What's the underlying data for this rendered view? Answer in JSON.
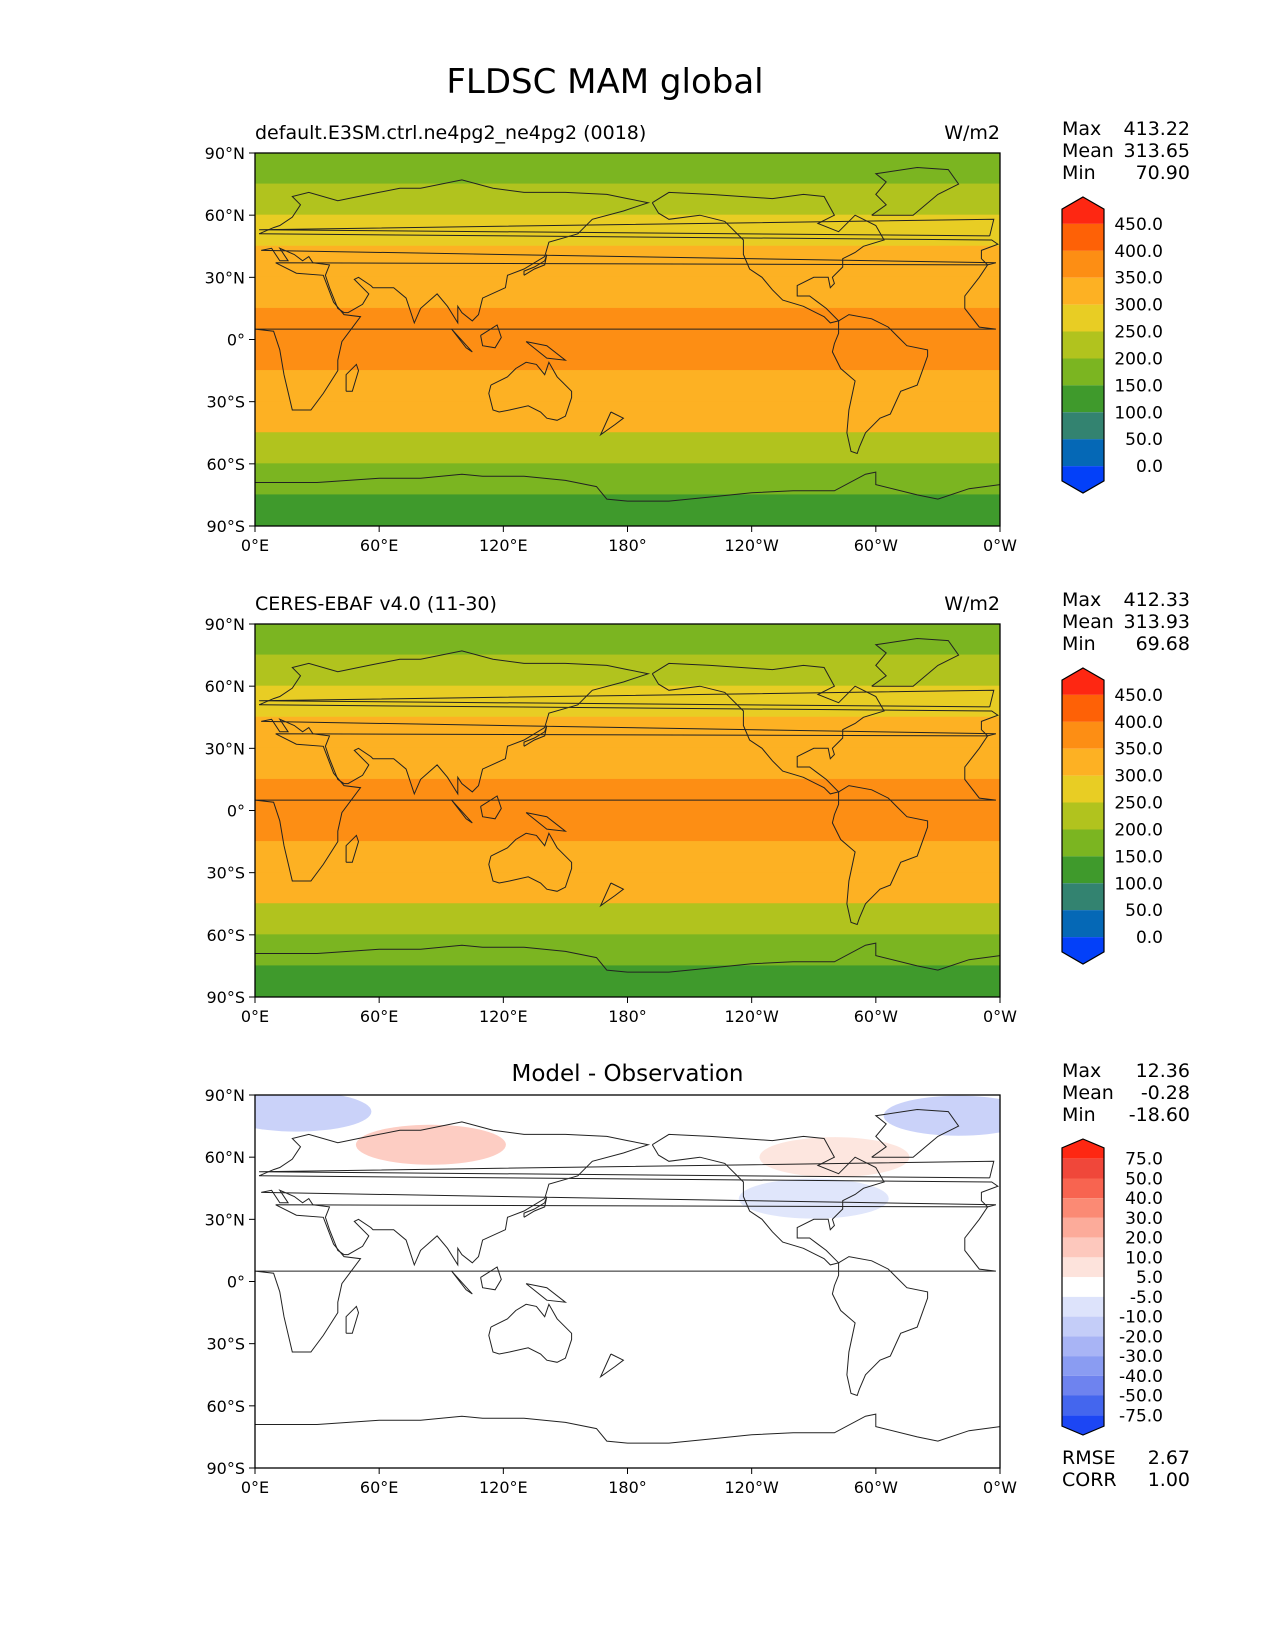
{
  "figure": {
    "title": "FLDSC MAM global"
  },
  "lat_ticks": [
    "90°N",
    "60°N",
    "30°N",
    "0°",
    "30°S",
    "60°S",
    "90°S"
  ],
  "lon_ticks": [
    "0°E",
    "60°E",
    "120°E",
    "180°",
    "120°W",
    "60°W",
    "0°W"
  ],
  "chart_data": [
    {
      "type": "heatmap",
      "title": "default.E3SM.ctrl.ne4pg2_ne4pg2 (0018)",
      "units": "W/m2",
      "stats": [
        {
          "label": "Max",
          "value": "413.22"
        },
        {
          "label": "Mean",
          "value": "313.65"
        },
        {
          "label": "Min",
          "value": "70.90"
        }
      ],
      "xlim": [
        0,
        360
      ],
      "ylim": [
        -90,
        90
      ],
      "colorbar": {
        "levels": [
          "450.0",
          "400.0",
          "350.0",
          "300.0",
          "250.0",
          "200.0",
          "150.0",
          "100.0",
          "50.0",
          "0.0"
        ],
        "colors": [
          "#fe2712",
          "#fe6106",
          "#fd8e14",
          "#fdb123",
          "#e8cd24",
          "#b1c31e",
          "#7bb521",
          "#3f9a2c",
          "#338370",
          "#0568b6",
          "#0340f9"
        ]
      },
      "field": [
        {
          "lat": 90,
          "value": 150
        },
        {
          "lat": 75,
          "value": 175
        },
        {
          "lat": 60,
          "value": 225
        },
        {
          "lat": 45,
          "value": 275
        },
        {
          "lat": 30,
          "value": 325
        },
        {
          "lat": 15,
          "value": 360
        },
        {
          "lat": 0,
          "value": 380
        },
        {
          "lat": -15,
          "value": 360
        },
        {
          "lat": -30,
          "value": 325
        },
        {
          "lat": -45,
          "value": 275
        },
        {
          "lat": -60,
          "value": 200
        },
        {
          "lat": -75,
          "value": 150
        },
        {
          "lat": -90,
          "value": 100
        }
      ]
    },
    {
      "type": "heatmap",
      "title": "CERES-EBAF v4.0 (11-30)",
      "units": "W/m2",
      "stats": [
        {
          "label": "Max",
          "value": "412.33"
        },
        {
          "label": "Mean",
          "value": "313.93"
        },
        {
          "label": "Min",
          "value": "69.68"
        }
      ],
      "xlim": [
        0,
        360
      ],
      "ylim": [
        -90,
        90
      ],
      "colorbar": {
        "levels": [
          "450.0",
          "400.0",
          "350.0",
          "300.0",
          "250.0",
          "200.0",
          "150.0",
          "100.0",
          "50.0",
          "0.0"
        ],
        "colors": [
          "#fe2712",
          "#fe6106",
          "#fd8e14",
          "#fdb123",
          "#e8cd24",
          "#b1c31e",
          "#7bb521",
          "#3f9a2c",
          "#338370",
          "#0568b6",
          "#0340f9"
        ]
      },
      "field": [
        {
          "lat": 90,
          "value": 150
        },
        {
          "lat": 75,
          "value": 175
        },
        {
          "lat": 60,
          "value": 225
        },
        {
          "lat": 45,
          "value": 275
        },
        {
          "lat": 30,
          "value": 325
        },
        {
          "lat": 15,
          "value": 360
        },
        {
          "lat": 0,
          "value": 380
        },
        {
          "lat": -15,
          "value": 360
        },
        {
          "lat": -30,
          "value": 325
        },
        {
          "lat": -45,
          "value": 275
        },
        {
          "lat": -60,
          "value": 200
        },
        {
          "lat": -75,
          "value": 150
        },
        {
          "lat": -90,
          "value": 100
        }
      ]
    },
    {
      "type": "heatmap",
      "title": "Model - Observation",
      "units": "",
      "stats": [
        {
          "label": "Max",
          "value": "12.36"
        },
        {
          "label": "Mean",
          "value": "-0.28"
        },
        {
          "label": "Min",
          "value": "-18.60"
        }
      ],
      "metrics": [
        {
          "label": "RMSE",
          "value": "2.67"
        },
        {
          "label": "CORR",
          "value": "1.00"
        }
      ],
      "xlim": [
        0,
        360
      ],
      "ylim": [
        -90,
        90
      ],
      "colorbar": {
        "levels": [
          "75.0",
          "50.0",
          "40.0",
          "30.0",
          "20.0",
          "10.0",
          "5.0",
          "-5.0",
          "-10.0",
          "-20.0",
          "-30.0",
          "-40.0",
          "-50.0",
          "-75.0"
        ],
        "colors": [
          "#fe2712",
          "#f0473a",
          "#f86450",
          "#fb8a74",
          "#fcab9a",
          "#fdc8bd",
          "#fde3dc",
          "#ffffff",
          "#dde3fb",
          "#c4cdf8",
          "#a8b4f5",
          "#8a9cf2",
          "#6e83ef",
          "#4466ee",
          "#1c46f4"
        ]
      },
      "anomalies": [
        {
          "lon": 85,
          "lat": 66,
          "value": 12
        },
        {
          "lon": 280,
          "lat": 60,
          "value": 8
        },
        {
          "lon": 270,
          "lat": 40,
          "value": -10
        },
        {
          "lon": 20,
          "lat": 82,
          "value": -12
        },
        {
          "lon": 340,
          "lat": 80,
          "value": -15
        }
      ]
    }
  ]
}
